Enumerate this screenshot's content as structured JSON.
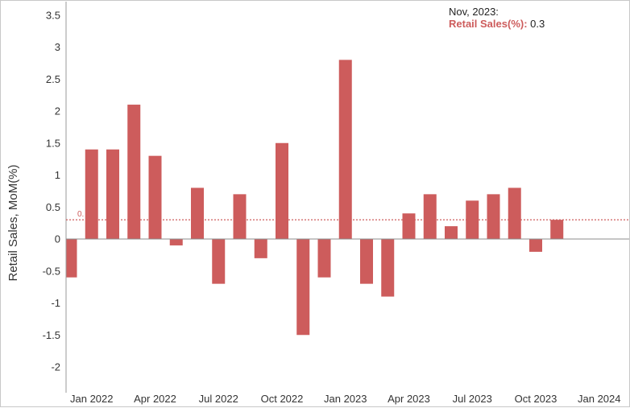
{
  "chart_data": {
    "type": "bar",
    "title": "",
    "xlabel": "",
    "ylabel": "Retail Sales, MoM(%)",
    "ylim": [
      -2.5,
      3.5
    ],
    "yticks": [
      "3.5",
      "3",
      "2.5",
      "2",
      "1.5",
      "1",
      "0.5",
      "0",
      "-0.5",
      "-1",
      "-1.5",
      "-2"
    ],
    "xticks": [
      "Jan 2022",
      "Apr 2022",
      "Jul 2022",
      "Oct 2022",
      "Jan 2023",
      "Apr 2023",
      "Jul 2023",
      "Oct 2023",
      "Jan 2024"
    ],
    "categories": [
      "Dec 2021",
      "Jan 2022",
      "Feb 2022",
      "Mar 2022",
      "Apr 2022",
      "May 2022",
      "Jun 2022",
      "Jul 2022",
      "Aug 2022",
      "Sep 2022",
      "Oct 2022",
      "Nov 2022",
      "Dec 2022",
      "Jan 2023",
      "Feb 2023",
      "Mar 2023",
      "Apr 2023",
      "May 2023",
      "Jun 2023",
      "Jul 2023",
      "Aug 2023",
      "Sep 2023",
      "Oct 2023",
      "Nov 2023"
    ],
    "series": [
      {
        "name": "Retail Sales(%)",
        "color": "#cd5c5c",
        "values": [
          -0.6,
          1.4,
          1.4,
          2.1,
          1.3,
          -0.1,
          0.8,
          -0.7,
          0.7,
          -0.3,
          1.5,
          -1.5,
          -0.6,
          2.8,
          -0.7,
          -0.9,
          0.4,
          0.7,
          0.2,
          0.6,
          0.7,
          0.8,
          -0.2,
          0.3
        ]
      }
    ],
    "reference_line": {
      "value": 0.3,
      "label": "0.",
      "color": "#cd5c5c",
      "style": "dotted"
    },
    "grid": false,
    "legend": "none"
  },
  "tooltip": {
    "header": "Nov, 2023:",
    "series_label": "Retail Sales(%)",
    "separator": ":",
    "value": "0.3"
  }
}
